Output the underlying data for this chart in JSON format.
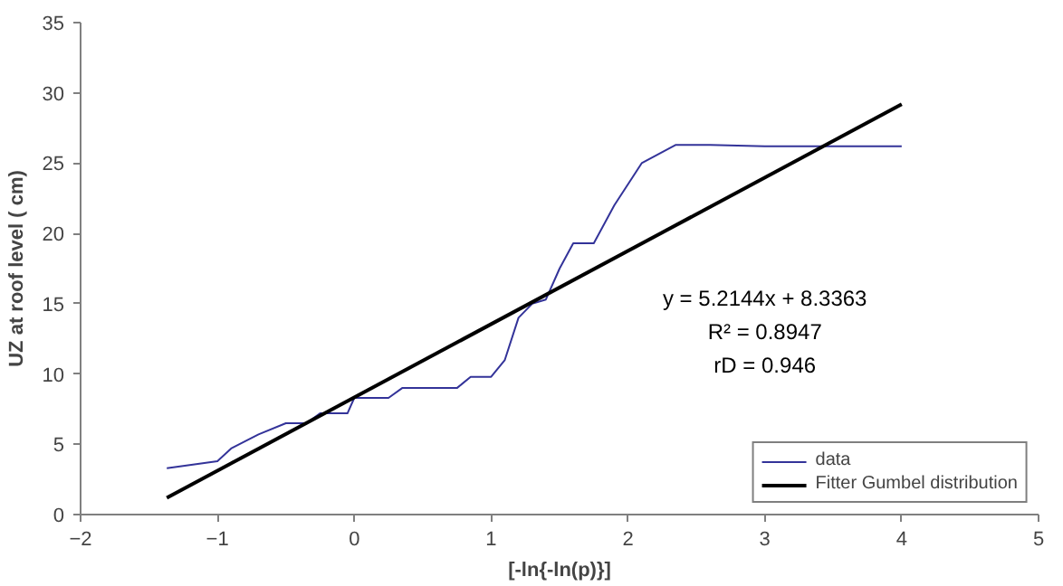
{
  "chart_data": {
    "type": "line",
    "xlabel": "[-ln{-ln(p)}]",
    "ylabel": "UZ at roof level ( cm)",
    "xlim": [
      -2,
      5
    ],
    "xticks": [
      -2,
      -1,
      0,
      1,
      2,
      3,
      4,
      5
    ],
    "ylim": [
      0,
      35
    ],
    "yticks": [
      0,
      5,
      10,
      15,
      20,
      25,
      30,
      35
    ],
    "grid": false,
    "legend": "bottom right",
    "marker": "none",
    "series": [
      {
        "name": "data",
        "color": "#333399",
        "x": [
          -1.37,
          -1.0,
          -0.9,
          -0.7,
          -0.5,
          -0.35,
          -0.25,
          -0.05,
          0,
          0.25,
          0.35,
          0.75,
          0.85,
          1.0,
          1.1,
          1.2,
          1.3,
          1.4,
          1.5,
          1.6,
          1.75,
          1.9,
          2.1,
          2.35,
          2.6,
          3,
          4
        ],
        "values": [
          3.3,
          3.8,
          4.7,
          5.7,
          6.5,
          6.5,
          7.2,
          7.2,
          8.3,
          8.3,
          9.0,
          9.0,
          9.8,
          9.8,
          11,
          14,
          15,
          15.3,
          17.5,
          19.3,
          19.3,
          22,
          25,
          26.3,
          26.3,
          26.2,
          26.2
        ]
      },
      {
        "name": "Fitter Gumbel distribution",
        "color": "#000000",
        "x": [
          -1.37,
          4
        ],
        "values": [
          1.19,
          29.19
        ]
      }
    ],
    "annotations": [
      "y = 5.2144x + 8.3363",
      "R² = 0.8947",
      "rD = 0.946"
    ]
  }
}
